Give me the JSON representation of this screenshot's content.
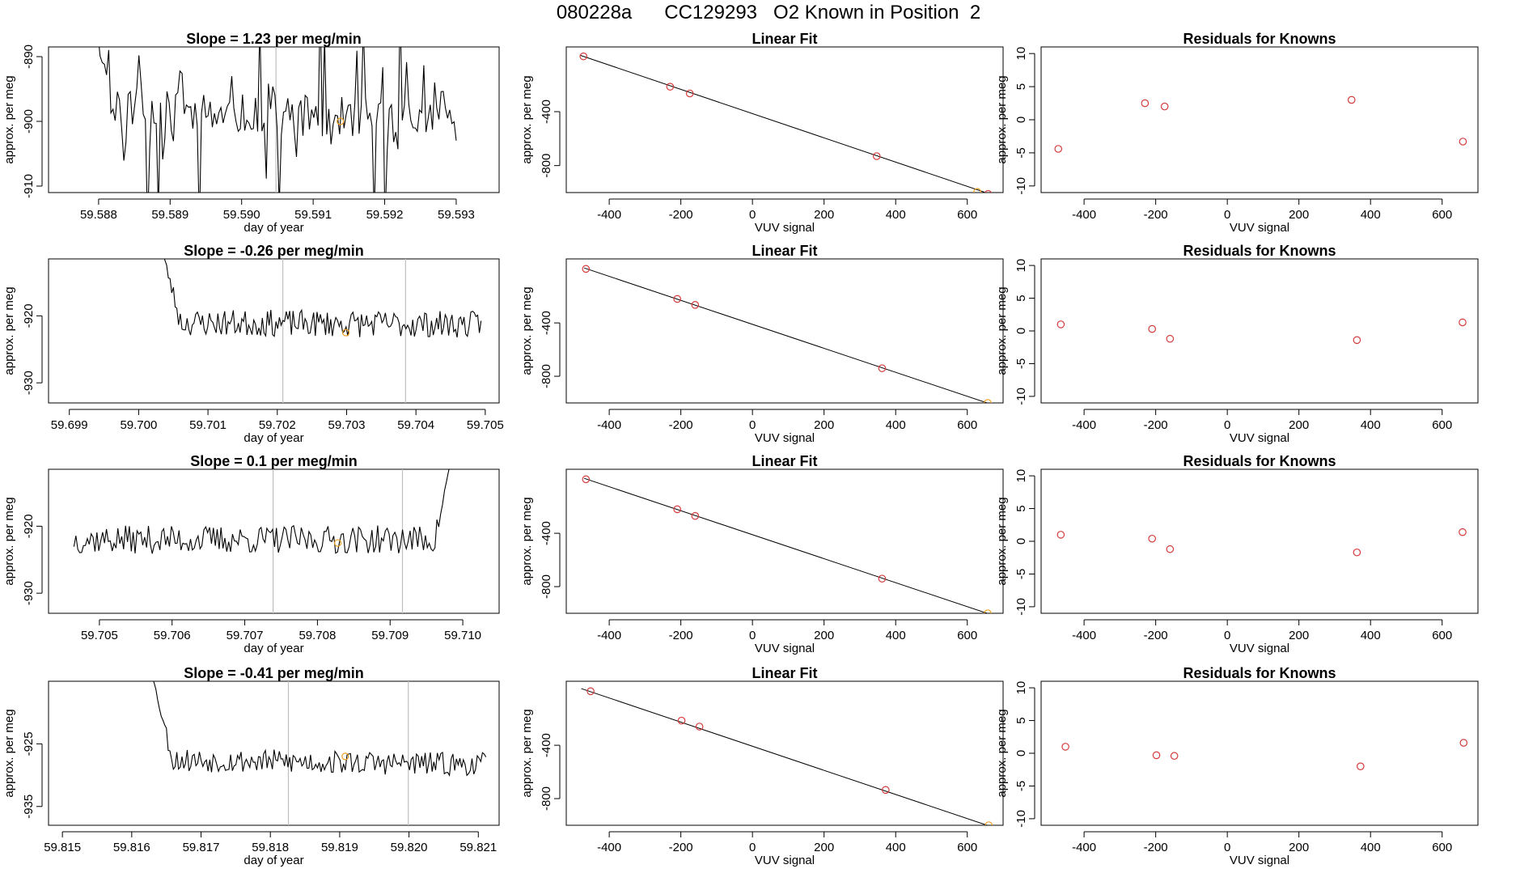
{
  "figure_title": "080228a      CC129293   O2 Known in Position  2",
  "colors": {
    "line": "#000000",
    "point": "#d43b3b",
    "highlight": "#f0a020",
    "vline": "#bfbfbf",
    "axis": "#000000"
  },
  "chart_data": [
    {
      "type": "line",
      "row": 0,
      "col": 0,
      "title": "Slope =  1.23  per meg/min",
      "xlabel": "day of year",
      "ylabel": "approx. per meg",
      "xlim": [
        59.5873,
        59.5936
      ],
      "ylim": [
        -911,
        -888.5
      ],
      "xticks": [
        "59.588",
        "59.589",
        "59.590",
        "59.591",
        "59.592",
        "59.593"
      ],
      "xtick_values": [
        59.588,
        59.589,
        59.59,
        59.591,
        59.592,
        59.593
      ],
      "yticks": [
        "-890",
        "-900",
        "-910"
      ],
      "ytick_values": [
        -890,
        -900,
        -910
      ],
      "series_seed": 11,
      "x_start": 59.5879,
      "x_end": 59.593,
      "n_points": 170,
      "baseline": -898,
      "trend": -2.0,
      "noise": 3.2,
      "spikes": 2.4,
      "start_high": -885,
      "vlines": [
        59.59048
      ],
      "highlight_point": {
        "x": 59.59138,
        "y": -900
      }
    },
    {
      "type": "scatter",
      "row": 0,
      "col": 1,
      "title": "Linear Fit",
      "xlabel": "VUV signal",
      "ylabel": "approx. per meg",
      "xlim": [
        -520,
        700
      ],
      "ylim": [
        -1000,
        80
      ],
      "xticks": [
        "-400",
        "-200",
        "0",
        "200",
        "400",
        "600"
      ],
      "xtick_values": [
        -400,
        -200,
        0,
        200,
        400,
        600
      ],
      "yticks": [
        "-400",
        "-800"
      ],
      "ytick_values": [
        -400,
        -800
      ],
      "points": [
        {
          "x": -472,
          "y": 10,
          "style": "point"
        },
        {
          "x": -230,
          "y": -215,
          "style": "point"
        },
        {
          "x": -175,
          "y": -265,
          "style": "point"
        },
        {
          "x": 347,
          "y": -730,
          "style": "point"
        },
        {
          "x": 658,
          "y": -1010,
          "style": "point"
        },
        {
          "x": 628,
          "y": -995,
          "style": "highlight"
        }
      ],
      "fit_line": {
        "x": [
          -480,
          670
        ],
        "y": [
          17,
          -1017
        ]
      }
    },
    {
      "type": "scatter",
      "row": 0,
      "col": 2,
      "title": "Residuals for Knowns",
      "xlabel": "VUV signal",
      "ylabel": "approx. per meg",
      "xlim": [
        -520,
        700
      ],
      "ylim": [
        -11,
        11
      ],
      "xticks": [
        "-400",
        "-200",
        "0",
        "200",
        "400",
        "600"
      ],
      "xtick_values": [
        -400,
        -200,
        0,
        200,
        400,
        600
      ],
      "yticks": [
        "10",
        "5",
        "0",
        "-5",
        "-10"
      ],
      "ytick_values": [
        10,
        5,
        0,
        -5,
        -10
      ],
      "points": [
        {
          "x": -472,
          "y": -4.4,
          "style": "point"
        },
        {
          "x": -230,
          "y": 2.5,
          "style": "point"
        },
        {
          "x": -175,
          "y": 2.0,
          "style": "point"
        },
        {
          "x": 347,
          "y": 3.0,
          "style": "point"
        },
        {
          "x": 658,
          "y": -3.3,
          "style": "point"
        }
      ]
    },
    {
      "type": "line",
      "row": 1,
      "col": 0,
      "title": "Slope =  -0.26  per meg/min",
      "xlabel": "day of year",
      "ylabel": "approx. per meg",
      "xlim": [
        59.6987,
        59.7052
      ],
      "ylim": [
        -933,
        -911.5
      ],
      "xticks": [
        "59.699",
        "59.700",
        "59.701",
        "59.702",
        "59.703",
        "59.704",
        "59.705"
      ],
      "xtick_values": [
        59.699,
        59.7,
        59.701,
        59.702,
        59.703,
        59.704,
        59.705
      ],
      "yticks": [
        "-920",
        "-930"
      ],
      "ytick_values": [
        -920,
        -930
      ],
      "series_seed": 23,
      "x_start": 59.70028,
      "x_end": 59.70494,
      "n_points": 190,
      "baseline": -921,
      "trend": -0.3,
      "noise": 2.0,
      "spikes": 0,
      "start_high": -908,
      "vlines": [
        59.70208,
        59.70385
      ],
      "highlight_point": {
        "x": 59.70299,
        "y": -922.5
      }
    },
    {
      "type": "scatter",
      "row": 1,
      "col": 1,
      "title": "Linear Fit",
      "xlabel": "VUV signal",
      "ylabel": "approx. per meg",
      "xlim": [
        -520,
        700
      ],
      "ylim": [
        -1000,
        80
      ],
      "xticks": [
        "-400",
        "-200",
        "0",
        "200",
        "400",
        "600"
      ],
      "xtick_values": [
        -400,
        -200,
        0,
        200,
        400,
        600
      ],
      "yticks": [
        "-400",
        "-800"
      ],
      "ytick_values": [
        -400,
        -800
      ],
      "points": [
        {
          "x": -465,
          "y": 5,
          "style": "point"
        },
        {
          "x": -210,
          "y": -220,
          "style": "point"
        },
        {
          "x": -160,
          "y": -265,
          "style": "point"
        },
        {
          "x": 362,
          "y": -740,
          "style": "point"
        },
        {
          "x": 657,
          "y": -1000,
          "style": "highlight"
        }
      ],
      "fit_line": {
        "x": [
          -470,
          672
        ],
        "y": [
          12,
          -1015
        ]
      }
    },
    {
      "type": "scatter",
      "row": 1,
      "col": 2,
      "title": "Residuals for Knowns",
      "xlabel": "VUV signal",
      "ylabel": "approx. per meg",
      "xlim": [
        -520,
        700
      ],
      "ylim": [
        -11,
        11
      ],
      "xticks": [
        "-400",
        "-200",
        "0",
        "200",
        "400",
        "600"
      ],
      "xtick_values": [
        -400,
        -200,
        0,
        200,
        400,
        600
      ],
      "yticks": [
        "10",
        "5",
        "0",
        "-5",
        "-10"
      ],
      "ytick_values": [
        10,
        5,
        0,
        -5,
        -10
      ],
      "points": [
        {
          "x": -465,
          "y": 1.0,
          "style": "point"
        },
        {
          "x": -210,
          "y": 0.3,
          "style": "point"
        },
        {
          "x": -160,
          "y": -1.2,
          "style": "point"
        },
        {
          "x": 362,
          "y": -1.4,
          "style": "point"
        },
        {
          "x": 657,
          "y": 1.3,
          "style": "point"
        }
      ]
    },
    {
      "type": "line",
      "row": 2,
      "col": 0,
      "title": "Slope =  0.1  per meg/min",
      "xlabel": "day of year",
      "ylabel": "approx. per meg",
      "xlim": [
        59.7043,
        59.7105
      ],
      "ylim": [
        -933,
        -911.5
      ],
      "xticks": [
        "59.705",
        "59.706",
        "59.707",
        "59.708",
        "59.709",
        "59.710"
      ],
      "xtick_values": [
        59.705,
        59.706,
        59.707,
        59.708,
        59.709,
        59.71
      ],
      "yticks": [
        "-920",
        "-930"
      ],
      "ytick_values": [
        -920,
        -930
      ],
      "series_seed": 37,
      "x_start": 59.70465,
      "x_end": 59.70988,
      "n_points": 200,
      "baseline": -922,
      "trend": 0.0,
      "noise": 2.1,
      "spikes": 0,
      "end_high": -908,
      "vlines": [
        59.70739,
        59.70917
      ],
      "highlight_point": {
        "x": 59.70828,
        "y": -922.5
      }
    },
    {
      "type": "scatter",
      "row": 2,
      "col": 1,
      "title": "Linear Fit",
      "xlabel": "VUV signal",
      "ylabel": "approx. per meg",
      "xlim": [
        -520,
        700
      ],
      "ylim": [
        -1000,
        80
      ],
      "xticks": [
        "-400",
        "-200",
        "0",
        "200",
        "400",
        "600"
      ],
      "xtick_values": [
        -400,
        -200,
        0,
        200,
        400,
        600
      ],
      "yticks": [
        "-400",
        "-800"
      ],
      "ytick_values": [
        -400,
        -800
      ],
      "points": [
        {
          "x": -465,
          "y": 5,
          "style": "point"
        },
        {
          "x": -210,
          "y": -220,
          "style": "point"
        },
        {
          "x": -160,
          "y": -270,
          "style": "point"
        },
        {
          "x": 362,
          "y": -740,
          "style": "point"
        },
        {
          "x": 657,
          "y": -1000,
          "style": "highlight"
        }
      ],
      "fit_line": {
        "x": [
          -470,
          672
        ],
        "y": [
          12,
          -1015
        ]
      }
    },
    {
      "type": "scatter",
      "row": 2,
      "col": 2,
      "title": "Residuals for Knowns",
      "xlabel": "VUV signal",
      "ylabel": "approx. per meg",
      "xlim": [
        -520,
        700
      ],
      "ylim": [
        -11,
        11
      ],
      "xticks": [
        "-400",
        "-200",
        "0",
        "200",
        "400",
        "600"
      ],
      "xtick_values": [
        -400,
        -200,
        0,
        200,
        400,
        600
      ],
      "yticks": [
        "10",
        "5",
        "0",
        "-5",
        "-10"
      ],
      "ytick_values": [
        10,
        5,
        0,
        -5,
        -10
      ],
      "points": [
        {
          "x": -465,
          "y": 1.0,
          "style": "point"
        },
        {
          "x": -210,
          "y": 0.4,
          "style": "point"
        },
        {
          "x": -160,
          "y": -1.2,
          "style": "point"
        },
        {
          "x": 362,
          "y": -1.7,
          "style": "point"
        },
        {
          "x": 657,
          "y": 1.4,
          "style": "point"
        }
      ]
    },
    {
      "type": "line",
      "row": 3,
      "col": 0,
      "title": "Slope =  -0.41  per meg/min",
      "xlabel": "day of year",
      "ylabel": "approx. per meg",
      "xlim": [
        59.8148,
        59.8213
      ],
      "ylim": [
        -938,
        -915
      ],
      "xticks": [
        "59.815",
        "59.816",
        "59.817",
        "59.818",
        "59.819",
        "59.820",
        "59.821"
      ],
      "xtick_values": [
        59.815,
        59.816,
        59.817,
        59.818,
        59.819,
        59.82,
        59.821
      ],
      "yticks": [
        "-925",
        "-935"
      ],
      "ytick_values": [
        -925,
        -935
      ],
      "series_seed": 53,
      "x_start": 59.81625,
      "x_end": 59.82111,
      "n_points": 195,
      "baseline": -927.5,
      "trend": -0.8,
      "noise": 1.9,
      "spikes": 0,
      "start_high": -912,
      "vlines": [
        59.81826,
        59.81999
      ],
      "highlight_point": {
        "x": 59.81908,
        "y": -927
      }
    },
    {
      "type": "scatter",
      "row": 3,
      "col": 1,
      "title": "Linear Fit",
      "xlabel": "VUV signal",
      "ylabel": "approx. per meg",
      "xlim": [
        -520,
        700
      ],
      "ylim": [
        -1000,
        80
      ],
      "xticks": [
        "-400",
        "-200",
        "0",
        "200",
        "400",
        "600"
      ],
      "xtick_values": [
        -400,
        -200,
        0,
        200,
        400,
        600
      ],
      "yticks": [
        "-400",
        "-800"
      ],
      "ytick_values": [
        -400,
        -800
      ],
      "points": [
        {
          "x": -452,
          "y": 5,
          "style": "point"
        },
        {
          "x": -198,
          "y": -215,
          "style": "point"
        },
        {
          "x": -148,
          "y": -260,
          "style": "point"
        },
        {
          "x": 372,
          "y": -735,
          "style": "point"
        },
        {
          "x": 660,
          "y": -1000,
          "style": "highlight"
        }
      ],
      "fit_line": {
        "x": [
          -478,
          672
        ],
        "y": [
          25,
          -1015
        ]
      }
    },
    {
      "type": "scatter",
      "row": 3,
      "col": 2,
      "title": "Residuals for Knowns",
      "xlabel": "VUV signal",
      "ylabel": "approx. per meg",
      "xlim": [
        -520,
        700
      ],
      "ylim": [
        -11,
        11
      ],
      "xticks": [
        "-400",
        "-200",
        "0",
        "200",
        "400",
        "600"
      ],
      "xtick_values": [
        -400,
        -200,
        0,
        200,
        400,
        600
      ],
      "yticks": [
        "10",
        "5",
        "0",
        "-5",
        "-10"
      ],
      "ytick_values": [
        10,
        5,
        0,
        -5,
        -10
      ],
      "points": [
        {
          "x": -452,
          "y": 1.0,
          "style": "point"
        },
        {
          "x": -198,
          "y": -0.3,
          "style": "point"
        },
        {
          "x": -148,
          "y": -0.4,
          "style": "point"
        },
        {
          "x": 372,
          "y": -2.0,
          "style": "point"
        },
        {
          "x": 660,
          "y": 1.6,
          "style": "point"
        }
      ]
    }
  ]
}
